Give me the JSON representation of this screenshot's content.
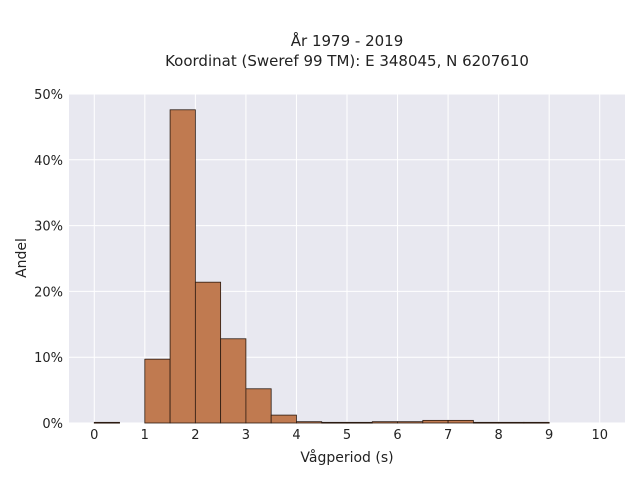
{
  "chart_data": {
    "type": "bar",
    "title_lines": [
      "År 1979 - 2019",
      "Koordinat (Sweref 99 TM): E 348045, N 6207610"
    ],
    "xlabel": "Vågperiod (s)",
    "ylabel": "Andel",
    "xlim": [
      -0.5,
      10.5
    ],
    "ylim": [
      0,
      50
    ],
    "x_ticks": [
      0,
      1,
      2,
      3,
      4,
      5,
      6,
      7,
      8,
      9,
      10
    ],
    "x_tick_labels": [
      "0",
      "1",
      "2",
      "3",
      "4",
      "5",
      "6",
      "7",
      "8",
      "9",
      "10"
    ],
    "y_ticks": [
      0,
      10,
      20,
      30,
      40,
      50
    ],
    "y_tick_labels": [
      "0%",
      "10%",
      "20%",
      "30%",
      "40%",
      "50%"
    ],
    "bin_width": 0.5,
    "bins": [
      {
        "start": 0.0,
        "value": 0.1
      },
      {
        "start": 0.5,
        "value": 0.0
      },
      {
        "start": 1.0,
        "value": 9.7
      },
      {
        "start": 1.5,
        "value": 47.6
      },
      {
        "start": 2.0,
        "value": 21.4
      },
      {
        "start": 2.5,
        "value": 12.8
      },
      {
        "start": 3.0,
        "value": 5.2
      },
      {
        "start": 3.5,
        "value": 1.2
      },
      {
        "start": 4.0,
        "value": 0.2
      },
      {
        "start": 4.5,
        "value": 0.1
      },
      {
        "start": 5.0,
        "value": 0.1
      },
      {
        "start": 5.5,
        "value": 0.2
      },
      {
        "start": 6.0,
        "value": 0.2
      },
      {
        "start": 6.5,
        "value": 0.4
      },
      {
        "start": 7.0,
        "value": 0.4
      },
      {
        "start": 7.5,
        "value": 0.1
      },
      {
        "start": 8.0,
        "value": 0.1
      },
      {
        "start": 8.5,
        "value": 0.1
      }
    ],
    "grid": true,
    "colors": {
      "bar_fill": "#c07a50",
      "bar_stroke": "#2b1a10",
      "plot_background": "#e8e8f0",
      "grid": "#ffffff",
      "text": "#222222"
    }
  }
}
